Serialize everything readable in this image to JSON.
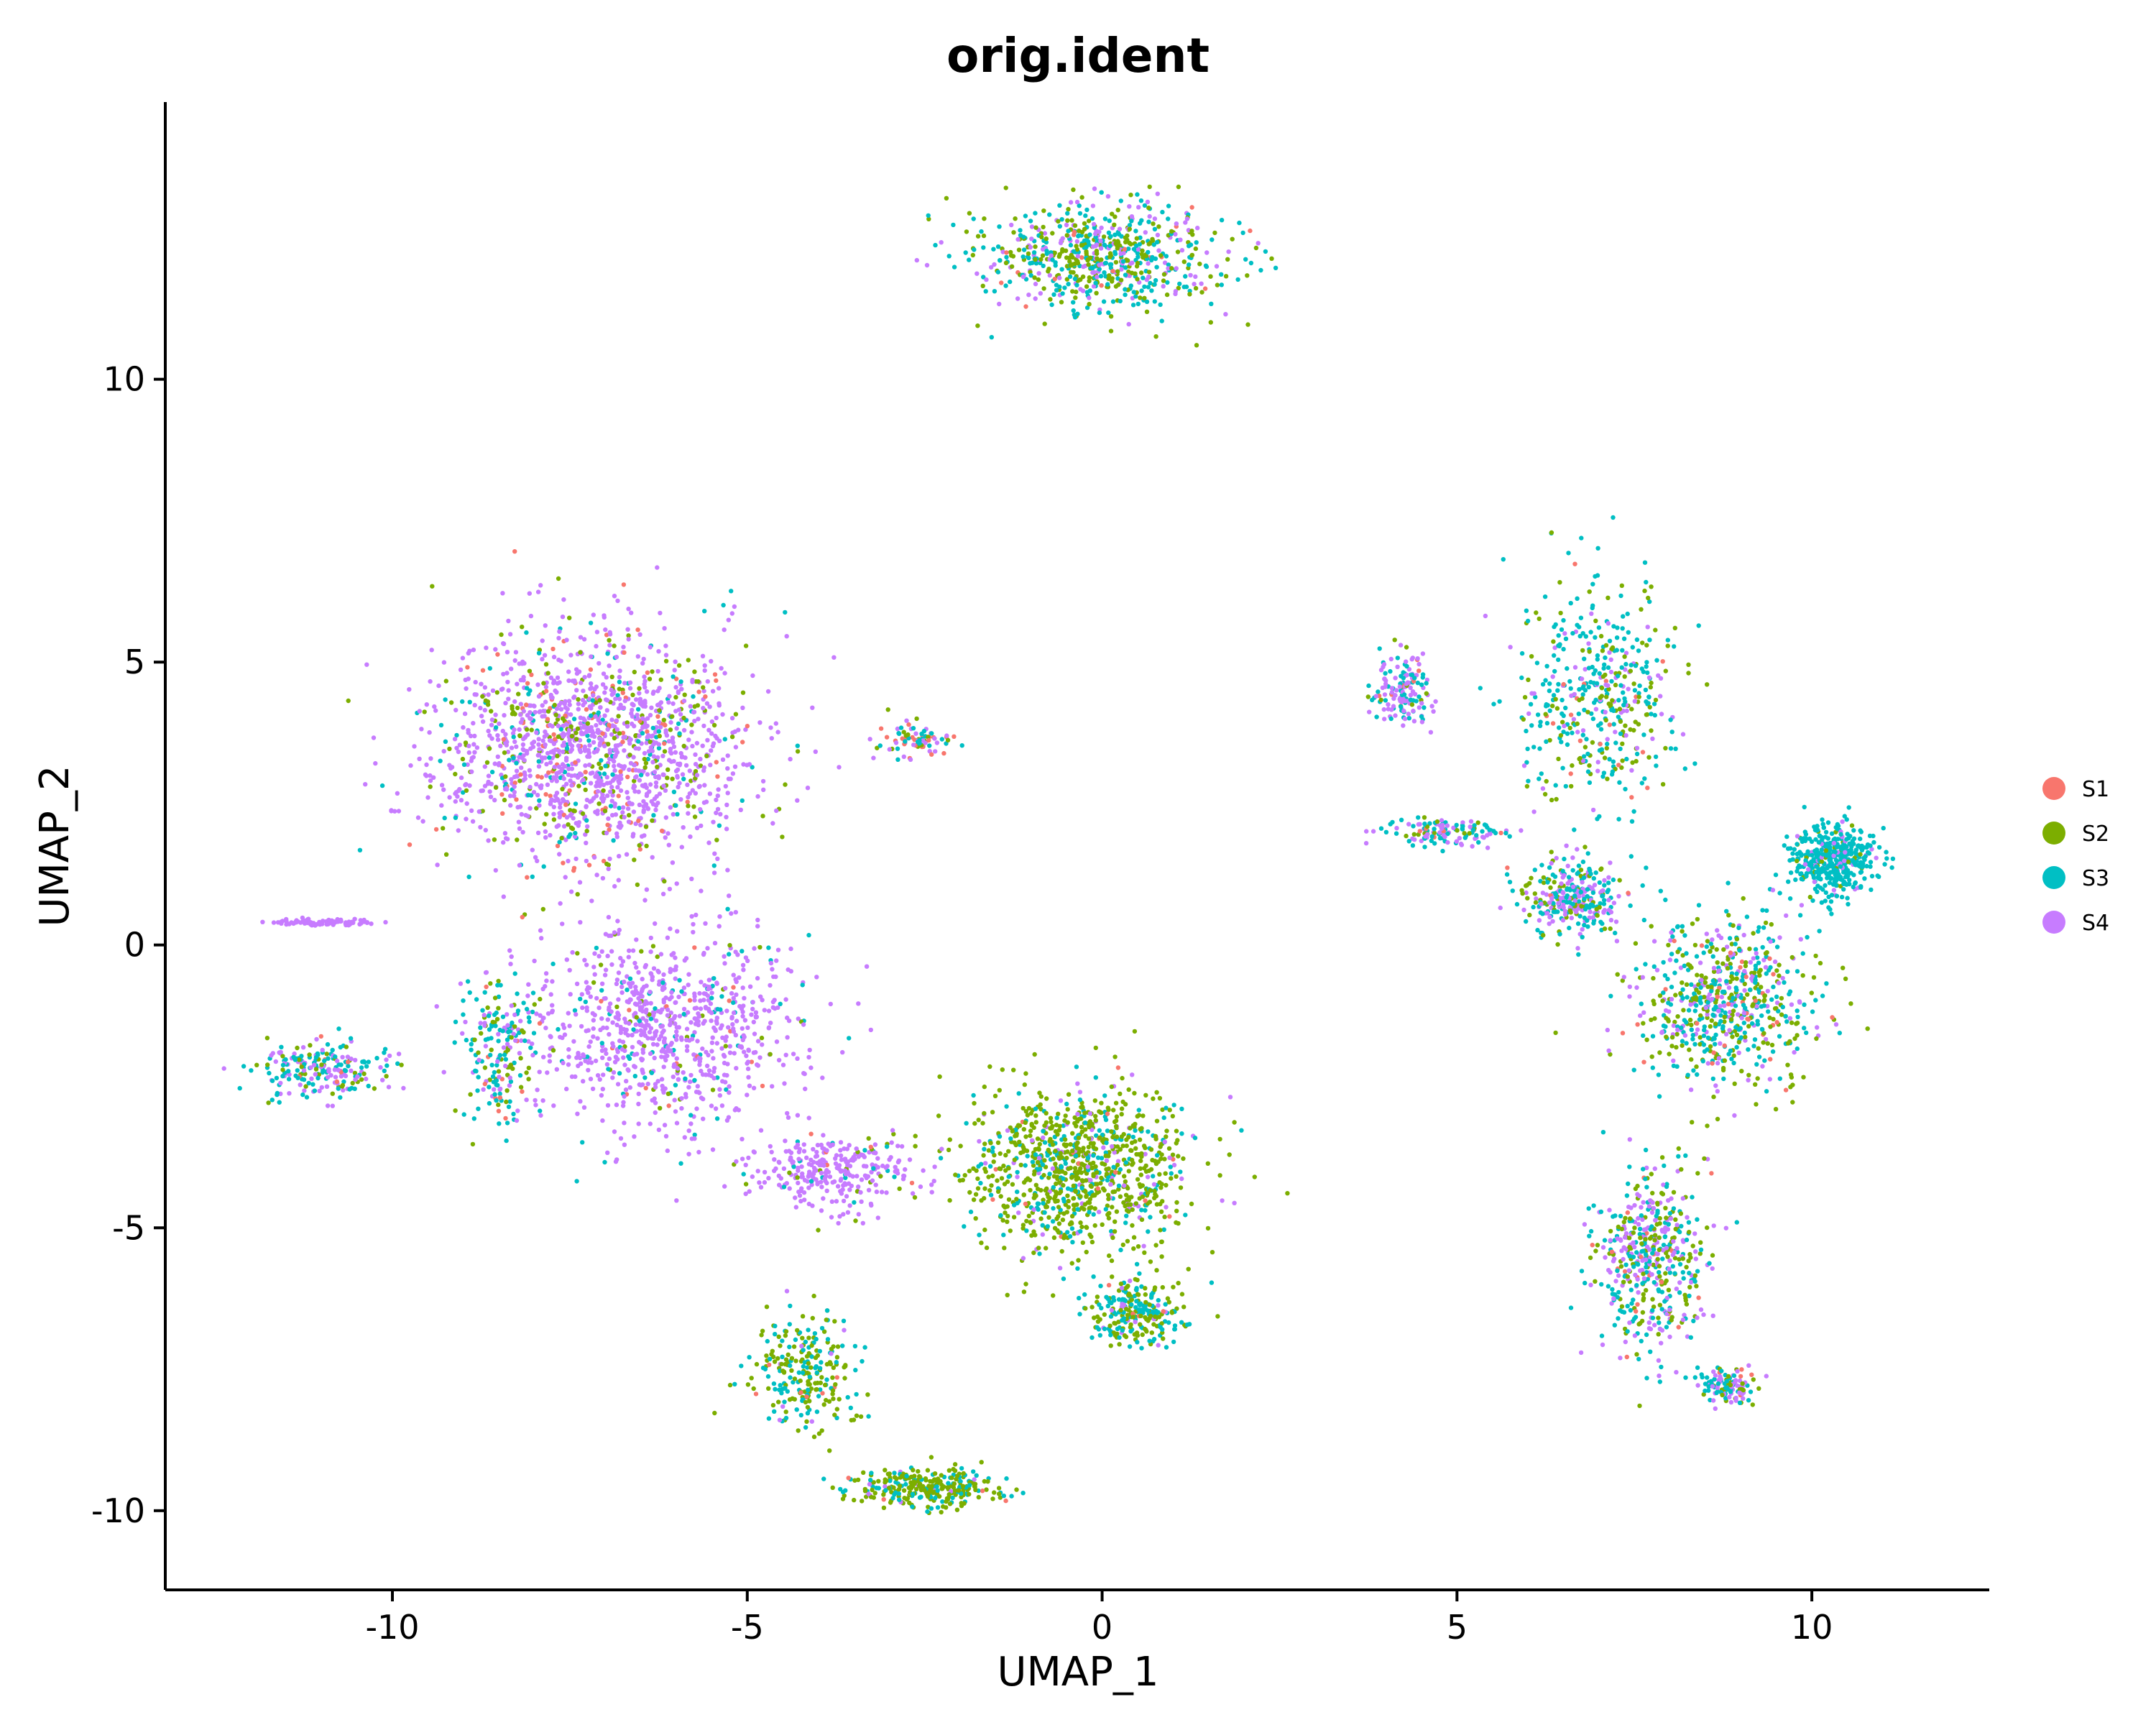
{
  "chart_data": {
    "type": "scatter",
    "title": "orig.ident",
    "xlabel": "UMAP_1",
    "ylabel": "UMAP_2",
    "xlim": [
      -13.2,
      12.5
    ],
    "ylim": [
      -11.4,
      14.9
    ],
    "xticks": [
      -10,
      -5,
      0,
      5,
      10
    ],
    "xtick_labels": [
      "-10",
      "-5",
      "0",
      "5",
      "10"
    ],
    "yticks": [
      -10,
      -5,
      0,
      5,
      10
    ],
    "ytick_labels": [
      "-10",
      "-5",
      "0",
      "5",
      "10"
    ],
    "grid": false,
    "legend_position": "right",
    "series": [
      {
        "name": "S1",
        "color": "#F8766D"
      },
      {
        "name": "S2",
        "color": "#7CAE00"
      },
      {
        "name": "S3",
        "color": "#00BFC4"
      },
      {
        "name": "S4",
        "color": "#C77CFF"
      }
    ],
    "clusters": [
      {
        "center": [
          -7.2,
          3.5
        ],
        "spread": [
          2.0,
          1.8
        ],
        "weights": [
          0.08,
          0.14,
          0.08,
          0.7
        ],
        "n": 1600
      },
      {
        "center": [
          -6.2,
          -1.5
        ],
        "spread": [
          1.8,
          1.6
        ],
        "weights": [
          0.02,
          0.05,
          0.08,
          0.85
        ],
        "n": 900
      },
      {
        "center": [
          -3.8,
          -4.0
        ],
        "spread": [
          1.0,
          0.6
        ],
        "weights": [
          0.02,
          0.05,
          0.05,
          0.88
        ],
        "n": 300
      },
      {
        "center": [
          -2.6,
          3.6
        ],
        "spread": [
          0.5,
          0.3
        ],
        "weights": [
          0.25,
          0.2,
          0.25,
          0.3
        ],
        "n": 80
      },
      {
        "center": [
          -11.0,
          0.4
        ],
        "spread": [
          0.7,
          0.05
        ],
        "weights": [
          0.0,
          0.0,
          0.0,
          1.0
        ],
        "n": 90
      },
      {
        "center": [
          -11.0,
          -2.2
        ],
        "spread": [
          0.8,
          0.4
        ],
        "weights": [
          0.05,
          0.15,
          0.45,
          0.35
        ],
        "n": 220
      },
      {
        "center": [
          -8.5,
          -1.8
        ],
        "spread": [
          0.5,
          1.2
        ],
        "weights": [
          0.05,
          0.3,
          0.45,
          0.2
        ],
        "n": 180
      },
      {
        "center": [
          0.0,
          12.2
        ],
        "spread": [
          1.6,
          0.9
        ],
        "weights": [
          0.02,
          0.38,
          0.38,
          0.22
        ],
        "n": 700
      },
      {
        "center": [
          -0.3,
          -4.0
        ],
        "spread": [
          1.4,
          1.3
        ],
        "weights": [
          0.02,
          0.7,
          0.2,
          0.08
        ],
        "n": 1000
      },
      {
        "center": [
          -2.5,
          -9.6
        ],
        "spread": [
          0.9,
          0.3
        ],
        "weights": [
          0.01,
          0.65,
          0.3,
          0.04
        ],
        "n": 300
      },
      {
        "center": [
          -4.2,
          -7.5
        ],
        "spread": [
          0.7,
          0.9
        ],
        "weights": [
          0.01,
          0.55,
          0.4,
          0.04
        ],
        "n": 250
      },
      {
        "center": [
          0.5,
          -6.5
        ],
        "spread": [
          0.6,
          0.5
        ],
        "weights": [
          0.01,
          0.4,
          0.55,
          0.04
        ],
        "n": 250
      },
      {
        "center": [
          10.3,
          1.5
        ],
        "spread": [
          0.5,
          0.6
        ],
        "weights": [
          0.0,
          0.05,
          0.85,
          0.1
        ],
        "n": 450
      },
      {
        "center": [
          6.6,
          0.8
        ],
        "spread": [
          0.6,
          0.6
        ],
        "weights": [
          0.05,
          0.2,
          0.4,
          0.35
        ],
        "n": 300
      },
      {
        "center": [
          7.0,
          4.5
        ],
        "spread": [
          1.0,
          1.8
        ],
        "weights": [
          0.04,
          0.25,
          0.55,
          0.16
        ],
        "n": 450
      },
      {
        "center": [
          4.2,
          4.5
        ],
        "spread": [
          0.4,
          0.6
        ],
        "weights": [
          0.05,
          0.1,
          0.35,
          0.5
        ],
        "n": 150
      },
      {
        "center": [
          4.8,
          2.0
        ],
        "spread": [
          0.7,
          0.2
        ],
        "weights": [
          0.05,
          0.1,
          0.45,
          0.4
        ],
        "n": 130
      },
      {
        "center": [
          8.8,
          -1.0
        ],
        "spread": [
          1.2,
          1.3
        ],
        "weights": [
          0.04,
          0.35,
          0.41,
          0.2
        ],
        "n": 650
      },
      {
        "center": [
          7.7,
          -5.5
        ],
        "spread": [
          0.7,
          1.4
        ],
        "weights": [
          0.04,
          0.3,
          0.36,
          0.3
        ],
        "n": 500
      },
      {
        "center": [
          8.8,
          -7.8
        ],
        "spread": [
          0.4,
          0.3
        ],
        "weights": [
          0.02,
          0.2,
          0.4,
          0.38
        ],
        "n": 120
      }
    ]
  }
}
